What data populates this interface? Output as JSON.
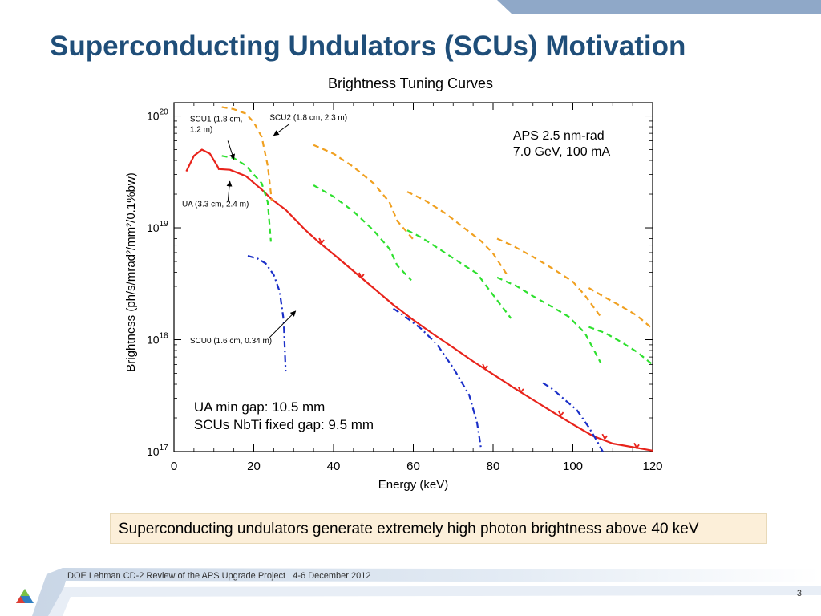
{
  "slide": {
    "title": "Superconducting Undulators (SCUs) Motivation",
    "chart_caption": "Brightness Tuning Curves",
    "callout": "Superconducting undulators generate extremely high photon brightness above 40 keV",
    "footer_project": "DOE Lehman CD-2 Review of the APS Upgrade Project",
    "footer_dates": "4-6 December  2012",
    "page_number": "3"
  },
  "colors": {
    "title": "#1f4e79",
    "band": "#8fa8c8",
    "ua": "#e8231b",
    "scu1": "#2ee02e",
    "scu2": "#f0a020",
    "scu0": "#1a2fc8",
    "callout_bg": "#fcefd9"
  },
  "chart_data": {
    "type": "line",
    "xlabel": "Energy  (keV)",
    "ylabel": "Brightness  (ph/s/mrad²/mm²/0.1%bw)",
    "xlim": [
      0,
      120
    ],
    "ylim": [
      1e+17,
      1e+20
    ],
    "y_scale": "log",
    "x_ticks": [
      0,
      20,
      40,
      60,
      80,
      100,
      120
    ],
    "x_tick_labels": [
      "0",
      "20",
      "40",
      "60",
      "80",
      "100",
      "120"
    ],
    "y_ticks": [
      1e+17,
      1e+18,
      1e+19,
      1e+20
    ],
    "y_tick_labels": [
      {
        "base": "10",
        "exp": "17"
      },
      {
        "base": "10",
        "exp": "18"
      },
      {
        "base": "10",
        "exp": "19"
      },
      {
        "base": "10",
        "exp": "20"
      }
    ],
    "info_text": [
      "APS 2.5 nm-rad",
      "7.0 GeV, 100 mA"
    ],
    "gap_text": [
      "UA min gap: 10.5 mm",
      "SCUs NbTi fixed gap: 9.5 mm"
    ],
    "annotations": [
      {
        "lines": [
          "SCU1 (1.8 cm,",
          "1.2 m)"
        ],
        "x": 4,
        "y": 8.9e+19
      },
      {
        "lines": [
          "SCU2 (1.8 cm, 2.3 m)"
        ],
        "x": 24,
        "y": 9.2e+19
      },
      {
        "lines": [
          "UA (3.3 cm, 2.4 m)"
        ],
        "x": 2,
        "y": 1.55e+19
      },
      {
        "lines": [
          "SCU0 (1.6 cm, 0.34 m)"
        ],
        "x": 4,
        "y": 9.3e+17
      }
    ],
    "arrows": [
      {
        "from": [
          13.5,
          6e+19
        ],
        "to": [
          15,
          4.1e+19
        ]
      },
      {
        "from": [
          29,
          8.5e+19
        ],
        "to": [
          25,
          6.7e+19
        ]
      },
      {
        "from": [
          13.5,
          1.7e+19
        ],
        "to": [
          14,
          2.6e+19
        ]
      },
      {
        "from": [
          24,
          1.05e+18
        ],
        "to": [
          30.5,
          1.8e+18
        ]
      }
    ],
    "series": [
      {
        "name": "UA (3.3 cm, 2.4 m)",
        "style": "solid",
        "color": "#e8231b",
        "segments": [
          [
            [
              3.1,
              3.2e+19
            ],
            [
              5,
              4.4e+19
            ],
            [
              7,
              5e+19
            ],
            [
              9,
              4.6e+19
            ],
            [
              11,
              3.5e+19
            ],
            [
              11.3,
              3.3e+19
            ]
          ],
          [
            [
              11.3,
              3.35e+19
            ],
            [
              14,
              3.3e+19
            ],
            [
              18,
              2.9e+19
            ],
            [
              22,
              2.2e+19
            ],
            [
              24.5,
              1.8e+19
            ],
            [
              28,
              1.45e+19
            ],
            [
              33,
              9.5e+18
            ],
            [
              36,
              7.6e+18
            ],
            [
              40,
              5.8e+18
            ],
            [
              45,
              4.1e+18
            ],
            [
              50,
              2.9e+18
            ],
            [
              55,
              2.05e+18
            ],
            [
              60,
              1.5e+18
            ],
            [
              65,
              1.12e+18
            ],
            [
              70,
              8.5e+17
            ],
            [
              75,
              6.4e+17
            ],
            [
              80,
              4.9e+17
            ],
            [
              85,
              3.75e+17
            ],
            [
              90,
              2.9e+17
            ],
            [
              95,
              2.25e+17
            ],
            [
              100,
              1.75e+17
            ],
            [
              105,
              1.38e+17
            ],
            [
              110,
              1.18e+17
            ],
            [
              120,
              1.02e+17
            ]
          ]
        ]
      },
      {
        "name": "SCU1 (1.8 cm, 1.2 m)",
        "style": "dash",
        "color": "#2ee02e",
        "segments": [
          [
            [
              12,
              4.4e+19
            ],
            [
              15,
              4.2e+19
            ],
            [
              18,
              3.6e+19
            ],
            [
              20,
              3e+19
            ],
            [
              22,
              2.5e+19
            ],
            [
              23.5,
              1.7e+19
            ],
            [
              24.3,
              7.5e+18
            ]
          ],
          [
            [
              35,
              2.4e+19
            ],
            [
              40,
              1.9e+19
            ],
            [
              45,
              1.4e+19
            ],
            [
              50,
              9.5e+18
            ],
            [
              54,
              6.5e+18
            ],
            [
              56,
              4.6e+18
            ],
            [
              59.5,
              3.4e+18
            ]
          ],
          [
            [
              58.5,
              9.5e+18
            ],
            [
              62,
              8.2e+18
            ],
            [
              67,
              6.3e+18
            ],
            [
              72,
              4.8e+18
            ],
            [
              76,
              3.9e+18
            ],
            [
              79,
              2.8e+18
            ],
            [
              84.5,
              1.55e+18
            ]
          ],
          [
            [
              81,
              3.6e+18
            ],
            [
              86,
              3e+18
            ],
            [
              90,
              2.45e+18
            ],
            [
              95,
              1.95e+18
            ],
            [
              99,
              1.6e+18
            ],
            [
              103,
              1.15e+18
            ],
            [
              107,
              6.2e+17
            ]
          ],
          [
            [
              104,
              1.3e+18
            ],
            [
              108,
              1.15e+18
            ],
            [
              112,
              9.6e+17
            ],
            [
              116,
              7.8e+17
            ],
            [
              120,
              6e+17
            ]
          ]
        ]
      },
      {
        "name": "SCU2 (1.8 cm, 2.3 m)",
        "style": "dash",
        "color": "#f0a020",
        "segments": [
          [
            [
              12,
              1.2e+20
            ],
            [
              15,
              1.15e+20
            ],
            [
              18,
              1.05e+20
            ],
            [
              20,
              8.8e+19
            ],
            [
              22,
              6.5e+19
            ],
            [
              23.5,
              3.6e+19
            ],
            [
              24.5,
              1.75e+19
            ]
          ],
          [
            [
              35,
              5.5e+19
            ],
            [
              40,
              4.6e+19
            ],
            [
              45,
              3.5e+19
            ],
            [
              50,
              2.5e+19
            ],
            [
              54,
              1.7e+19
            ],
            [
              56,
              1.15e+19
            ],
            [
              60.5,
              7.5e+18
            ]
          ],
          [
            [
              58.5,
              2.1e+19
            ],
            [
              63,
              1.75e+19
            ],
            [
              68,
              1.35e+19
            ],
            [
              73,
              9.8e+18
            ],
            [
              77,
              7.6e+18
            ],
            [
              80,
              5.9e+18
            ],
            [
              83.5,
              3.8e+18
            ]
          ],
          [
            [
              81,
              8e+18
            ],
            [
              85,
              6.9e+18
            ],
            [
              90,
              5.5e+18
            ],
            [
              95,
              4.3e+18
            ],
            [
              100,
              3.3e+18
            ],
            [
              103,
              2.5e+18
            ],
            [
              107,
              1.6e+18
            ]
          ],
          [
            [
              104,
              2.9e+18
            ],
            [
              108,
              2.4e+18
            ],
            [
              112,
              2e+18
            ],
            [
              116,
              1.65e+18
            ],
            [
              120,
              1.25e+18
            ]
          ]
        ]
      },
      {
        "name": "SCU0 (1.6 cm, 0.34 m)",
        "style": "dashdot",
        "color": "#1a2fc8",
        "segments": [
          [
            [
              18.5,
              5.6e+18
            ],
            [
              21,
              5.3e+18
            ],
            [
              23,
              4.8e+18
            ],
            [
              25,
              3.8e+18
            ],
            [
              26.5,
              2.7e+18
            ],
            [
              27.5,
              1.5e+18
            ],
            [
              28,
              5.2e+17
            ]
          ],
          [
            [
              55,
              1.9e+18
            ],
            [
              58,
              1.6e+18
            ],
            [
              62,
              1.25e+18
            ],
            [
              66,
              9e+17
            ],
            [
              70,
              5.6e+17
            ],
            [
              74,
              3.2e+17
            ],
            [
              76,
              1.8e+17
            ],
            [
              77,
              1.05e+17
            ]
          ],
          [
            [
              92.5,
              4.1e+17
            ],
            [
              95,
              3.6e+17
            ],
            [
              98,
              2.9e+17
            ],
            [
              101,
              2.35e+17
            ],
            [
              104,
              1.65e+17
            ],
            [
              106,
              1.25e+17
            ],
            [
              107.5,
              1e+17
            ]
          ]
        ]
      }
    ]
  }
}
